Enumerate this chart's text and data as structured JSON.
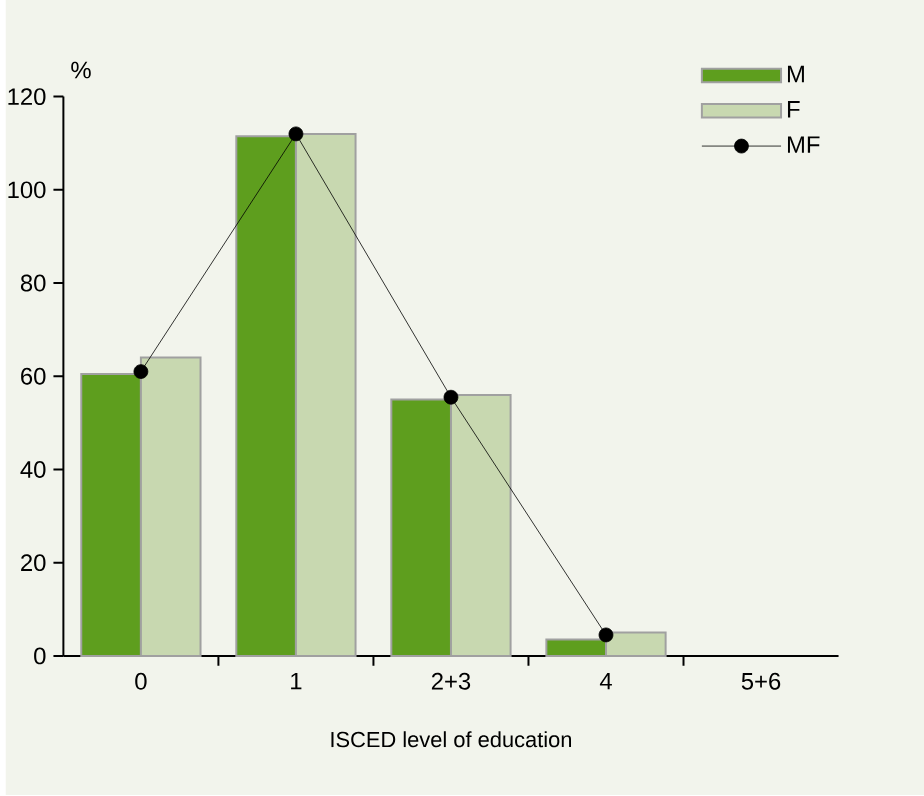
{
  "chart_data": {
    "type": "bar",
    "ylabel": "%",
    "xlabel": "ISCED level of education",
    "categories": [
      "0",
      "1",
      "2+3",
      "4",
      "5+6"
    ],
    "ylim": [
      0,
      120
    ],
    "yticks": [
      0,
      20,
      40,
      60,
      80,
      100,
      120
    ],
    "legend": "top right",
    "series": [
      {
        "name": "M",
        "color": "#5e9e1e",
        "values": [
          60.5,
          111.5,
          55,
          3.5,
          null
        ]
      },
      {
        "name": "F",
        "color": "#c8d8b0",
        "values": [
          64,
          112,
          56,
          5,
          null
        ]
      },
      {
        "name": "MF",
        "type": "line",
        "color": "#000000",
        "marker": "circle",
        "values": [
          61,
          112,
          55.5,
          4.5,
          null
        ]
      }
    ]
  }
}
